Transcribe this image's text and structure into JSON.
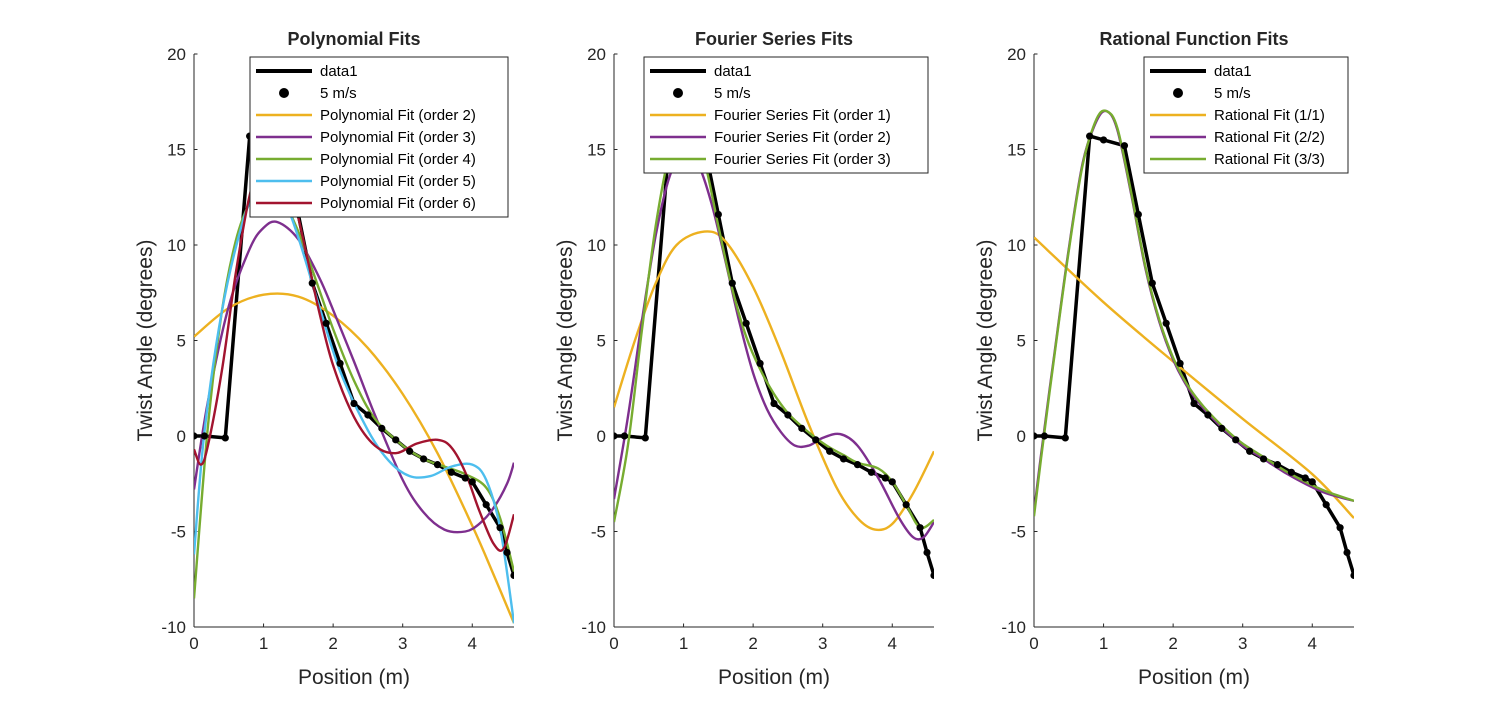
{
  "chart_data": [
    {
      "type": "line",
      "title": "Polynomial Fits",
      "xlabel": "Position (m)",
      "ylabel": "Twist Angle (degrees)",
      "xlim": [
        0,
        4.6
      ],
      "ylim": [
        -10,
        20
      ],
      "xticks": [
        0,
        1,
        2,
        3,
        4
      ],
      "yticks": [
        -10,
        -5,
        0,
        5,
        10,
        15,
        20
      ],
      "legend_position": "top-right",
      "series": [
        {
          "name": "data1",
          "kind": "line",
          "color": "#000000",
          "x": [
            0,
            0.15,
            0.45,
            0.8,
            1.0,
            1.3,
            1.5,
            1.7,
            1.9,
            2.1,
            2.3,
            2.5,
            2.7,
            2.9,
            3.1,
            3.3,
            3.5,
            3.7,
            3.9,
            4.0,
            4.2,
            4.4,
            4.5,
            4.6
          ],
          "y": [
            0,
            0,
            -0.1,
            15.7,
            15.5,
            15.2,
            11.6,
            8.0,
            5.9,
            3.8,
            1.7,
            1.1,
            0.4,
            -0.2,
            -0.8,
            -1.2,
            -1.5,
            -1.9,
            -2.2,
            -2.4,
            -3.6,
            -4.8,
            -6.1,
            -7.3
          ]
        },
        {
          "name": "5 m/s",
          "kind": "marker",
          "color": "#000000",
          "x": [
            0,
            0.15,
            0.45,
            0.8,
            1.0,
            1.3,
            1.5,
            1.7,
            1.9,
            2.1,
            2.3,
            2.5,
            2.7,
            2.9,
            3.1,
            3.3,
            3.5,
            3.7,
            3.9,
            4.0,
            4.2,
            4.4,
            4.5,
            4.6
          ],
          "y": [
            0,
            0,
            -0.1,
            15.7,
            15.5,
            15.2,
            11.6,
            8.0,
            5.9,
            3.8,
            1.7,
            1.1,
            0.4,
            -0.2,
            -0.8,
            -1.2,
            -1.5,
            -1.9,
            -2.2,
            -2.4,
            -3.6,
            -4.8,
            -6.1,
            -7.3
          ]
        },
        {
          "name": "Polynomial Fit (order 2)",
          "kind": "line",
          "color": "#EDB120",
          "x": [
            0,
            0.5,
            1.0,
            1.5,
            2.0,
            2.5,
            3.0,
            3.5,
            4.0,
            4.3,
            4.6
          ],
          "y": [
            5.2,
            6.7,
            7.4,
            7.3,
            6.3,
            4.6,
            2.2,
            -0.9,
            -4.7,
            -7.2,
            -9.8
          ]
        },
        {
          "name": "Polynomial Fit (order 3)",
          "kind": "line",
          "color": "#7E2F8E",
          "x": [
            0,
            0.2,
            0.5,
            0.8,
            1.0,
            1.2,
            1.5,
            1.8,
            2.0,
            2.3,
            2.6,
            3.0,
            3.3,
            3.6,
            3.9,
            4.1,
            4.3,
            4.5,
            4.6
          ],
          "y": [
            -2.8,
            1.8,
            6.8,
            9.8,
            10.9,
            11.2,
            10.3,
            8.3,
            6.6,
            3.9,
            1.1,
            -2.3,
            -4.0,
            -4.9,
            -5.0,
            -4.6,
            -3.8,
            -2.5,
            -1.4
          ]
        },
        {
          "name": "Polynomial Fit (order 4)",
          "kind": "line",
          "color": "#77AC30",
          "x": [
            0,
            0.2,
            0.4,
            0.6,
            0.8,
            1.0,
            1.1,
            1.3,
            1.5,
            1.7,
            2.0,
            2.3,
            2.6,
            3.0,
            3.3,
            3.6,
            3.9,
            4.2,
            4.4,
            4.6
          ],
          "y": [
            -8.5,
            0.5,
            6.5,
            10.2,
            12.2,
            12.9,
            12.9,
            12.2,
            10.7,
            8.7,
            5.6,
            2.9,
            0.9,
            -0.5,
            -1.2,
            -1.6,
            -2.0,
            -2.7,
            -4.3,
            -7.1
          ]
        },
        {
          "name": "Polynomial Fit (order 5)",
          "kind": "line",
          "color": "#4DBEEE",
          "x": [
            0,
            0.15,
            0.4,
            0.7,
            0.9,
            1.1,
            1.3,
            1.5,
            1.8,
            2.1,
            2.5,
            2.8,
            3.1,
            3.4,
            3.7,
            4.0,
            4.2,
            4.4,
            4.6
          ],
          "y": [
            -6.2,
            0.2,
            6.5,
            11.2,
            12.8,
            13.1,
            12.3,
            10.4,
            6.8,
            3.4,
            0.3,
            -1.3,
            -2.1,
            -2.1,
            -1.6,
            -1.5,
            -2.3,
            -4.8,
            -9.8
          ]
        },
        {
          "name": "Polynomial Fit (order 6)",
          "kind": "line",
          "color": "#A2142F",
          "x": [
            0,
            0.1,
            0.2,
            0.4,
            0.6,
            0.8,
            1.0,
            1.2,
            1.4,
            1.6,
            1.8,
            2.0,
            2.3,
            2.6,
            2.9,
            3.2,
            3.5,
            3.7,
            3.9,
            4.1,
            4.3,
            4.45,
            4.6
          ],
          "y": [
            -0.7,
            -1.5,
            -0.5,
            3.4,
            8.5,
            12.6,
            14.7,
            14.8,
            12.9,
            9.8,
            6.5,
            3.7,
            1.0,
            -0.5,
            -0.9,
            -0.4,
            -0.2,
            -0.6,
            -1.9,
            -3.9,
            -5.6,
            -5.9,
            -4.1
          ]
        }
      ]
    },
    {
      "type": "line",
      "title": "Fourier Series Fits",
      "xlabel": "Position (m)",
      "ylabel": "Twist Angle (degrees)",
      "xlim": [
        0,
        4.6
      ],
      "ylim": [
        -10,
        20
      ],
      "xticks": [
        0,
        1,
        2,
        3,
        4
      ],
      "yticks": [
        -10,
        -5,
        0,
        5,
        10,
        15,
        20
      ],
      "legend_position": "top-right",
      "series": [
        {
          "name": "data1",
          "kind": "line",
          "color": "#000000",
          "x": [
            0,
            0.15,
            0.45,
            0.8,
            1.0,
            1.3,
            1.5,
            1.7,
            1.9,
            2.1,
            2.3,
            2.5,
            2.7,
            2.9,
            3.1,
            3.3,
            3.5,
            3.7,
            3.9,
            4.0,
            4.2,
            4.4,
            4.5,
            4.6
          ],
          "y": [
            0,
            0,
            -0.1,
            15.7,
            15.5,
            15.2,
            11.6,
            8.0,
            5.9,
            3.8,
            1.7,
            1.1,
            0.4,
            -0.2,
            -0.8,
            -1.2,
            -1.5,
            -1.9,
            -2.2,
            -2.4,
            -3.6,
            -4.8,
            -6.1,
            -7.3
          ]
        },
        {
          "name": "5 m/s",
          "kind": "marker",
          "color": "#000000",
          "x": [
            0,
            0.15,
            0.45,
            0.8,
            1.0,
            1.3,
            1.5,
            1.7,
            1.9,
            2.1,
            2.3,
            2.5,
            2.7,
            2.9,
            3.1,
            3.3,
            3.5,
            3.7,
            3.9,
            4.0,
            4.2,
            4.4,
            4.5,
            4.6
          ],
          "y": [
            0,
            0,
            -0.1,
            15.7,
            15.5,
            15.2,
            11.6,
            8.0,
            5.9,
            3.8,
            1.7,
            1.1,
            0.4,
            -0.2,
            -0.8,
            -1.2,
            -1.5,
            -1.9,
            -2.2,
            -2.4,
            -3.6,
            -4.8,
            -6.1,
            -7.3
          ]
        },
        {
          "name": "Fourier Series Fit (order 1)",
          "kind": "line",
          "color": "#EDB120",
          "x": [
            0,
            0.3,
            0.6,
            0.9,
            1.3,
            1.6,
            2.0,
            2.4,
            2.8,
            3.2,
            3.5,
            3.75,
            4.0,
            4.3,
            4.6
          ],
          "y": [
            1.5,
            5.0,
            8.0,
            10.0,
            10.7,
            10.2,
            7.8,
            4.4,
            0.6,
            -2.7,
            -4.3,
            -4.9,
            -4.6,
            -3.0,
            -0.8
          ]
        },
        {
          "name": "Fourier Series Fit (order 2)",
          "kind": "line",
          "color": "#7E2F8E",
          "x": [
            0,
            0.2,
            0.4,
            0.6,
            0.8,
            1.0,
            1.2,
            1.4,
            1.6,
            1.8,
            2.0,
            2.2,
            2.4,
            2.6,
            2.8,
            3.0,
            3.25,
            3.5,
            3.8,
            4.1,
            4.3,
            4.45,
            4.6
          ],
          "y": [
            -3.3,
            1.0,
            6.0,
            10.5,
            13.6,
            14.8,
            14.3,
            12.2,
            9.2,
            6.0,
            3.3,
            1.4,
            0.2,
            -0.5,
            -0.5,
            -0.1,
            0.1,
            -0.5,
            -2.2,
            -4.3,
            -5.3,
            -5.3,
            -4.5
          ]
        },
        {
          "name": "Fourier Series Fit (order 3)",
          "kind": "line",
          "color": "#77AC30",
          "x": [
            0,
            0.2,
            0.4,
            0.6,
            0.8,
            1.0,
            1.1,
            1.3,
            1.5,
            1.7,
            1.9,
            2.1,
            2.3,
            2.5,
            2.7,
            2.9,
            3.1,
            3.3,
            3.5,
            3.8,
            4.0,
            4.2,
            4.4,
            4.6
          ],
          "y": [
            -4.5,
            -0.5,
            5.5,
            11.0,
            14.8,
            16.2,
            16.2,
            14.4,
            11.0,
            7.7,
            5.2,
            3.5,
            2.2,
            1.2,
            0.5,
            -0.1,
            -0.6,
            -1.0,
            -1.4,
            -1.7,
            -2.4,
            -3.6,
            -4.8,
            -4.4
          ]
        }
      ]
    },
    {
      "type": "line",
      "title": "Rational Function Fits",
      "xlabel": "Position (m)",
      "ylabel": "Twist Angle (degrees)",
      "xlim": [
        0,
        4.6
      ],
      "ylim": [
        -10,
        20
      ],
      "xticks": [
        0,
        1,
        2,
        3,
        4
      ],
      "yticks": [
        -10,
        -5,
        0,
        5,
        10,
        15,
        20
      ],
      "legend_position": "top-right",
      "series": [
        {
          "name": "data1",
          "kind": "line",
          "color": "#000000",
          "x": [
            0,
            0.15,
            0.45,
            0.8,
            1.0,
            1.3,
            1.5,
            1.7,
            1.9,
            2.1,
            2.3,
            2.5,
            2.7,
            2.9,
            3.1,
            3.3,
            3.5,
            3.7,
            3.9,
            4.0,
            4.2,
            4.4,
            4.5,
            4.6
          ],
          "y": [
            0,
            0,
            -0.1,
            15.7,
            15.5,
            15.2,
            11.6,
            8.0,
            5.9,
            3.8,
            1.7,
            1.1,
            0.4,
            -0.2,
            -0.8,
            -1.2,
            -1.5,
            -1.9,
            -2.2,
            -2.4,
            -3.6,
            -4.8,
            -6.1,
            -7.3
          ]
        },
        {
          "name": "5 m/s",
          "kind": "marker",
          "color": "#000000",
          "x": [
            0,
            0.15,
            0.45,
            0.8,
            1.0,
            1.3,
            1.5,
            1.7,
            1.9,
            2.1,
            2.3,
            2.5,
            2.7,
            2.9,
            3.1,
            3.3,
            3.5,
            3.7,
            3.9,
            4.0,
            4.2,
            4.4,
            4.5,
            4.6
          ],
          "y": [
            0,
            0,
            -0.1,
            15.7,
            15.5,
            15.2,
            11.6,
            8.0,
            5.9,
            3.8,
            1.7,
            1.1,
            0.4,
            -0.2,
            -0.8,
            -1.2,
            -1.5,
            -1.9,
            -2.2,
            -2.4,
            -3.6,
            -4.8,
            -6.1,
            -7.3
          ]
        },
        {
          "name": "Rational Fit (1/1)",
          "kind": "line",
          "color": "#EDB120",
          "x": [
            0,
            1.0,
            2.0,
            3.0,
            4.0,
            4.6
          ],
          "y": [
            10.4,
            7.0,
            3.9,
            0.9,
            -2.0,
            -4.3
          ]
        },
        {
          "name": "Rational Fit (2/2)",
          "kind": "line",
          "color": "#7E2F8E",
          "x": [
            0,
            0.1,
            0.3,
            0.5,
            0.7,
            0.9,
            1.05,
            1.2,
            1.4,
            1.6,
            1.8,
            2.0,
            2.2,
            2.4,
            2.6,
            2.8,
            3.0,
            3.3,
            3.6,
            3.9,
            4.2,
            4.6
          ],
          "y": [
            -4.0,
            -1.0,
            4.5,
            9.8,
            14.3,
            16.5,
            17.0,
            16.0,
            12.6,
            8.8,
            6.0,
            4.0,
            2.6,
            1.6,
            0.8,
            0.1,
            -0.5,
            -1.2,
            -1.9,
            -2.5,
            -3.0,
            -3.4
          ]
        },
        {
          "name": "Rational Fit (3/3)",
          "kind": "line",
          "color": "#77AC30",
          "x": [
            0,
            0.1,
            0.3,
            0.5,
            0.7,
            0.9,
            1.05,
            1.2,
            1.4,
            1.6,
            1.8,
            2.0,
            2.2,
            2.4,
            2.6,
            2.8,
            3.0,
            3.3,
            3.6,
            3.9,
            4.2,
            4.6
          ],
          "y": [
            -4.2,
            -1.2,
            4.4,
            9.7,
            14.2,
            16.6,
            17.0,
            16.1,
            12.7,
            8.9,
            6.1,
            4.1,
            2.7,
            1.7,
            0.9,
            0.2,
            -0.4,
            -1.1,
            -1.8,
            -2.4,
            -2.9,
            -3.4
          ]
        }
      ]
    }
  ]
}
